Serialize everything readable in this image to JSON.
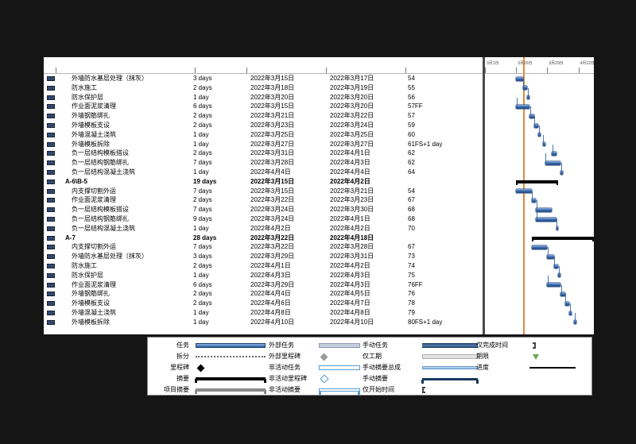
{
  "page": {
    "rows": [
      {
        "name": "外墙防水基层处理（抹灰）",
        "duration": "3 days",
        "start": "2022年3月15日",
        "finish": "2022年3月17日",
        "predecessors": "54",
        "summary": false
      },
      {
        "name": "防水施工",
        "duration": "2 days",
        "start": "2022年3月18日",
        "finish": "2022年3月19日",
        "predecessors": "55",
        "summary": false
      },
      {
        "name": "防水保护层",
        "duration": "1 day",
        "start": "2022年3月20日",
        "finish": "2022年3月20日",
        "predecessors": "56",
        "summary": false
      },
      {
        "name": "作业面泥浆清理",
        "duration": "6 days",
        "start": "2022年3月15日",
        "finish": "2022年3月20日",
        "predecessors": "57FF",
        "summary": false
      },
      {
        "name": "外墙钢筋绑扎",
        "duration": "2 days",
        "start": "2022年3月21日",
        "finish": "2022年3月22日",
        "predecessors": "57",
        "summary": false
      },
      {
        "name": "外墙模板支设",
        "duration": "2 days",
        "start": "2022年3月23日",
        "finish": "2022年3月24日",
        "predecessors": "59",
        "summary": false
      },
      {
        "name": "外墙混凝土浇筑",
        "duration": "1 day",
        "start": "2022年3月25日",
        "finish": "2022年3月25日",
        "predecessors": "60",
        "summary": false
      },
      {
        "name": "外墙模板拆除",
        "duration": "1 day",
        "start": "2022年3月27日",
        "finish": "2022年3月27日",
        "predecessors": "61FS+1 day",
        "summary": false
      },
      {
        "name": "负一层结构模板搭设",
        "duration": "2 days",
        "start": "2022年3月31日",
        "finish": "2022年4月1日",
        "predecessors": "62",
        "summary": false
      },
      {
        "name": "负一层结构钢筋绑扎",
        "duration": "7 days",
        "start": "2022年3月28日",
        "finish": "2022年4月3日",
        "predecessors": "62",
        "summary": false
      },
      {
        "name": "负一层结构混凝土浇筑",
        "duration": "1 day",
        "start": "2022年4月4日",
        "finish": "2022年4月4日",
        "predecessors": "64",
        "summary": false
      },
      {
        "name": "A-6\\B-5",
        "duration": "19 days",
        "start": "2022年3月15日",
        "finish": "2022年4月2日",
        "predecessors": "",
        "summary": true
      },
      {
        "name": "内支撑切割外运",
        "duration": "7 days",
        "start": "2022年3月15日",
        "finish": "2022年3月21日",
        "predecessors": "54",
        "summary": false
      },
      {
        "name": "作业面泥浆清理",
        "duration": "2 days",
        "start": "2022年3月22日",
        "finish": "2022年3月23日",
        "predecessors": "67",
        "summary": false
      },
      {
        "name": "负一层结构模板搭设",
        "duration": "7 days",
        "start": "2022年3月24日",
        "finish": "2022年3月30日",
        "predecessors": "68",
        "summary": false
      },
      {
        "name": "负一层结构钢筋绑扎",
        "duration": "9 days",
        "start": "2022年3月24日",
        "finish": "2022年4月1日",
        "predecessors": "68",
        "summary": false
      },
      {
        "name": "负一层结构混凝土浇筑",
        "duration": "1 day",
        "start": "2022年4月2日",
        "finish": "2022年4月2日",
        "predecessors": "70",
        "summary": false
      },
      {
        "name": "A-7",
        "duration": "28 days",
        "start": "2022年3月22日",
        "finish": "2022年4月18日",
        "predecessors": "",
        "summary": true
      },
      {
        "name": "内支撑切割外运",
        "duration": "7 days",
        "start": "2022年3月22日",
        "finish": "2022年3月28日",
        "predecessors": "67",
        "summary": false
      },
      {
        "name": "外墙防水基层处理（抹灰）",
        "duration": "3 days",
        "start": "2022年3月29日",
        "finish": "2022年3月31日",
        "predecessors": "73",
        "summary": false
      },
      {
        "name": "防水施工",
        "duration": "2 days",
        "start": "2022年4月1日",
        "finish": "2022年4月2日",
        "predecessors": "74",
        "summary": false
      },
      {
        "name": "防水保护层",
        "duration": "1 day",
        "start": "2022年4月3日",
        "finish": "2022年4月3日",
        "predecessors": "75",
        "summary": false
      },
      {
        "name": "作业面泥浆清理",
        "duration": "6 days",
        "start": "2022年3月29日",
        "finish": "2022年4月3日",
        "predecessors": "76FF",
        "summary": false
      },
      {
        "name": "外墙钢筋绑扎",
        "duration": "2 days",
        "start": "2022年4月4日",
        "finish": "2022年4月5日",
        "predecessors": "76",
        "summary": false
      },
      {
        "name": "外墙模板支设",
        "duration": "2 days",
        "start": "2022年4月6日",
        "finish": "2022年4月7日",
        "predecessors": "78",
        "summary": false
      },
      {
        "name": "外墙混凝土浇筑",
        "duration": "1 day",
        "start": "2022年4月8日",
        "finish": "2022年4月8日",
        "predecessors": "79",
        "summary": false
      },
      {
        "name": "外墙模板拆除",
        "duration": "1 day",
        "start": "2022年4月10日",
        "finish": "2022年4月10日",
        "predecessors": "80FS+1 day",
        "summary": false
      }
    ]
  },
  "gantt": {
    "week_labels": [
      "3月1日",
      "3月15日",
      "3月29日",
      "4月12日"
    ],
    "colors": {
      "task_bar": "#2e5fa3",
      "summary_bar": "#000000",
      "current_date_line": "#e08a3c",
      "connector": "#2e5fa3"
    }
  },
  "legend": {
    "columns": [
      {
        "items": [
          {
            "label": "任务",
            "sample": "task"
          },
          {
            "label": "拆分",
            "sample": "split"
          },
          {
            "label": "里程碑",
            "sample": "milestone"
          },
          {
            "label": "摘要",
            "sample": "summary"
          },
          {
            "label": "项目摘要",
            "sample": "project-summary"
          }
        ]
      },
      {
        "items": [
          {
            "label": "外部任务",
            "sample": "external-task"
          },
          {
            "label": "外部里程碑",
            "sample": "external-milestone"
          },
          {
            "label": "非活动任务",
            "sample": "inactive-task"
          },
          {
            "label": "非活动里程碑",
            "sample": "inactive-milestone"
          },
          {
            "label": "非活动摘要",
            "sample": "inactive-summary"
          }
        ]
      },
      {
        "items": [
          {
            "label": "手动任务",
            "sample": "manual-task"
          },
          {
            "label": "仅工期",
            "sample": "duration-only"
          },
          {
            "label": "手动摘要总成",
            "sample": "manual-summary-rollup"
          },
          {
            "label": "手动摘要",
            "sample": "manual-summary"
          },
          {
            "label": "仅开始时间",
            "sample": "start-only"
          }
        ]
      },
      {
        "items": [
          {
            "label": "仅完成时间",
            "sample": "finish-only"
          },
          {
            "label": "期限",
            "sample": "deadline"
          },
          {
            "label": "进度",
            "sample": "progress"
          }
        ]
      }
    ]
  }
}
